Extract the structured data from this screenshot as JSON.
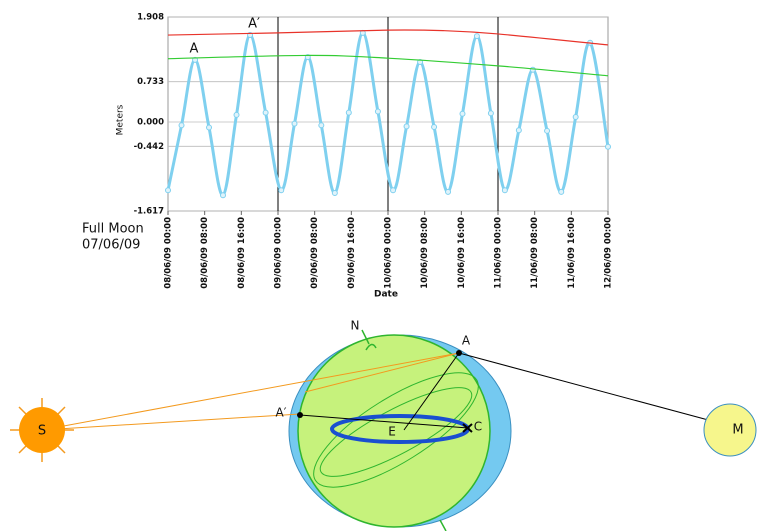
{
  "chart_data": {
    "type": "line",
    "y_label": "Meters",
    "x_label": "Date",
    "side_label": [
      "Full Moon",
      "07/06/09"
    ],
    "annotations": [
      "A",
      "A′"
    ],
    "xlim": [
      0,
      96
    ],
    "ylim": [
      -1.617,
      1.908
    ],
    "yticks": [
      1.908,
      0.733,
      {
        "value": 0,
        "label": "0.000"
      },
      -0.442,
      -1.617
    ],
    "xticks": [
      {
        "value": 0,
        "label": "08/06/09 00:00"
      },
      {
        "value": 8,
        "label": "08/06/09 08:00"
      },
      {
        "value": 16,
        "label": "08/06/09 16:00"
      },
      {
        "value": 24,
        "label": "09/06/09 00:00"
      },
      {
        "value": 32,
        "label": "09/06/09 08:00"
      },
      {
        "value": 40,
        "label": "09/06/09 16:00"
      },
      {
        "value": 48,
        "label": "10/06/09 00:00"
      },
      {
        "value": 56,
        "label": "10/06/09 08:00"
      },
      {
        "value": 64,
        "label": "10/06/09 16:00"
      },
      {
        "value": 72,
        "label": "11/06/09 00:00"
      },
      {
        "value": 80,
        "label": "11/06/09 08:00"
      },
      {
        "value": 88,
        "label": "11/06/09 16:00"
      },
      {
        "value": 96,
        "label": "12/06/09 00:00"
      }
    ],
    "day_lines": [
      24,
      48,
      72
    ],
    "grid": true,
    "series": [
      {
        "color": "#7fd0ef",
        "markers": true,
        "x": [
          0,
          2.95,
          5.9,
          8.95,
          12,
          14.95,
          17.9,
          21.3,
          24.7,
          27.6,
          30.5,
          33.45,
          36.4,
          39.45,
          42.5,
          45.8,
          49.1,
          52.05,
          55,
          58.05,
          61.1,
          64.25,
          67.4,
          70.45,
          73.5,
          76.55,
          79.6,
          82.7,
          85.8,
          88.95,
          92.1,
          96
        ],
        "values": [
          -1.24,
          -0.06,
          1.13,
          -0.1,
          -1.33,
          0.13,
          1.58,
          0.17,
          -1.24,
          -0.03,
          1.18,
          -0.06,
          -1.29,
          0.17,
          1.62,
          0.19,
          -1.24,
          -0.08,
          1.09,
          -0.09,
          -1.27,
          0.15,
          1.56,
          0.16,
          -1.24,
          -0.15,
          0.95,
          -0.16,
          -1.27,
          0.09,
          1.44,
          -0.45
        ]
      },
      {
        "color": "#e8332a",
        "markers": false,
        "x": [
          0,
          24,
          48,
          60,
          72,
          96
        ],
        "values": [
          1.58,
          1.62,
          1.67,
          1.66,
          1.6,
          1.4
        ]
      },
      {
        "color": "#33cc33",
        "markers": false,
        "x": [
          0,
          30,
          48,
          72,
          96
        ],
        "values": [
          1.15,
          1.21,
          1.16,
          1.02,
          0.84
        ]
      }
    ]
  },
  "diagram": {
    "north": "N",
    "point_a": "A",
    "point_a_prime": "A′",
    "earth_center": "E",
    "point_c": "C",
    "sun": "S",
    "moon": "M"
  }
}
